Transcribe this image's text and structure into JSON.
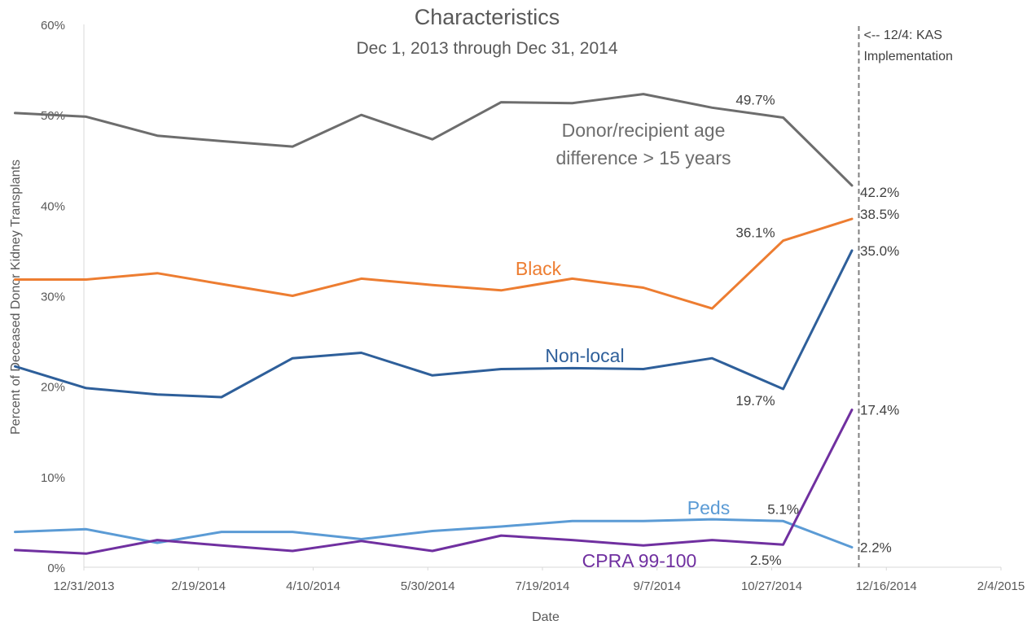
{
  "chart_data": {
    "type": "line",
    "title": "Characteristics",
    "subtitle": "Dec 1, 2013 through Dec 31, 2014",
    "xlabel": "Date",
    "ylabel": "Percent of Deceased Donor Kidney Transplants",
    "ylim": [
      0,
      60
    ],
    "y_ticks": [
      "0%",
      "10%",
      "20%",
      "30%",
      "40%",
      "50%",
      "60%"
    ],
    "x_ticks": [
      "12/31/2013",
      "2/19/2014",
      "4/10/2014",
      "5/30/2014",
      "7/19/2014",
      "9/7/2014",
      "10/27/2014",
      "12/16/2014",
      "2/4/2015"
    ],
    "grid": false,
    "x": [
      "12/1/2013",
      "1/1/2014",
      "2/1/2014",
      "3/1/2014",
      "4/1/2014",
      "5/1/2014",
      "6/1/2014",
      "7/1/2014",
      "8/1/2014",
      "9/1/2014",
      "10/1/2014",
      "11/1/2014",
      "12/1/2014"
    ],
    "series": [
      {
        "name": "Donor/recipient age difference > 15 years",
        "label_lines": [
          "Donor/recipient age",
          "difference > 15 years"
        ],
        "color": "#6d6d6d",
        "values": [
          50.2,
          49.8,
          47.7,
          47.1,
          46.5,
          50.0,
          47.3,
          51.4,
          51.3,
          52.3,
          50.8,
          49.7,
          42.2
        ]
      },
      {
        "name": "Black",
        "label_lines": [
          "Black"
        ],
        "color": "#ed7d31",
        "values": [
          31.8,
          31.8,
          32.5,
          31.3,
          30.0,
          31.9,
          31.2,
          30.6,
          31.9,
          30.9,
          28.6,
          36.1,
          38.5
        ]
      },
      {
        "name": "Non-local",
        "label_lines": [
          "Non-local"
        ],
        "color": "#2e5f9a",
        "values": [
          22.2,
          19.8,
          19.1,
          18.8,
          23.1,
          23.7,
          21.2,
          21.9,
          22.0,
          21.9,
          23.1,
          19.7,
          35.0
        ]
      },
      {
        "name": "Peds",
        "label_lines": [
          "Peds"
        ],
        "color": "#5b9bd5",
        "values": [
          3.9,
          4.2,
          2.7,
          3.9,
          3.9,
          3.1,
          4.0,
          4.5,
          5.1,
          5.1,
          5.3,
          5.1,
          2.2
        ]
      },
      {
        "name": "CPRA 99-100",
        "label_lines": [
          "CPRA 99-100"
        ],
        "color": "#7030a0",
        "values": [
          1.9,
          1.5,
          3.0,
          2.4,
          1.8,
          2.9,
          1.8,
          3.5,
          3.0,
          2.4,
          3.0,
          2.5,
          17.4
        ]
      }
    ],
    "data_labels": [
      {
        "series": 0,
        "index": 11,
        "text": "49.7%"
      },
      {
        "series": 0,
        "index": 12,
        "text": "42.2%"
      },
      {
        "series": 1,
        "index": 11,
        "text": "36.1%"
      },
      {
        "series": 1,
        "index": 12,
        "text": "38.5%"
      },
      {
        "series": 2,
        "index": 11,
        "text": "19.7%"
      },
      {
        "series": 2,
        "index": 12,
        "text": "35.0%"
      },
      {
        "series": 3,
        "index": 11,
        "text": "5.1%"
      },
      {
        "series": 3,
        "index": 12,
        "text": "2.2%"
      },
      {
        "series": 4,
        "index": 11,
        "text": "2.5%"
      },
      {
        "series": 4,
        "index": 12,
        "text": "17.4%"
      }
    ],
    "annotation": {
      "date": "12/4/2014",
      "text_lines": [
        "<-- 12/4: KAS",
        "Implementation"
      ]
    }
  }
}
